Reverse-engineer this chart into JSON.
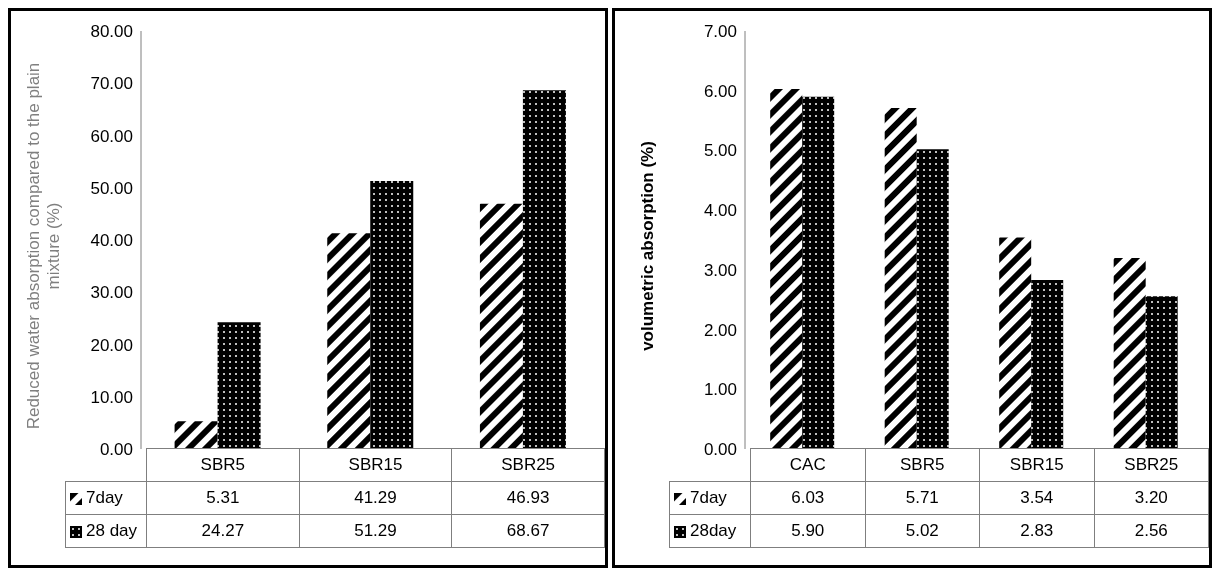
{
  "chart_data": [
    {
      "type": "bar",
      "ylabel": "Reduced water absorption compared to the plain mixture (%)",
      "categories": [
        "SBR5",
        "SBR15",
        "SBR25"
      ],
      "series": [
        {
          "name": "7day",
          "color": "#000000",
          "values": [
            5.31,
            41.29,
            46.93
          ],
          "value_labels": [
            "5.31",
            "41.29",
            "46.93"
          ]
        },
        {
          "name": "28 day",
          "color": "#000000",
          "values": [
            24.27,
            51.29,
            68.67
          ],
          "value_labels": [
            "24.27",
            "51.29",
            "68.67"
          ]
        }
      ],
      "ylim": [
        0,
        80
      ],
      "yticks": [
        {
          "value": 0,
          "label": "0.00"
        },
        {
          "value": 10,
          "label": "10.00"
        },
        {
          "value": 20,
          "label": "20.00"
        },
        {
          "value": 30,
          "label": "30.00"
        },
        {
          "value": 40,
          "label": "40.00"
        },
        {
          "value": 50,
          "label": "50.00"
        },
        {
          "value": 60,
          "label": "60.00"
        },
        {
          "value": 70,
          "label": "70.00"
        },
        {
          "value": 80,
          "label": "80.00"
        }
      ],
      "grid": false,
      "legend": "bottom"
    },
    {
      "type": "bar",
      "ylabel": "volumetric absorption (%)",
      "categories": [
        "CAC",
        "SBR5",
        "SBR15",
        "SBR25"
      ],
      "series": [
        {
          "name": "7day",
          "color": "#000000",
          "values": [
            6.03,
            5.71,
            3.54,
            3.2
          ],
          "value_labels": [
            "6.03",
            "5.71",
            "3.54",
            "3.20"
          ]
        },
        {
          "name": "28day",
          "color": "#000000",
          "values": [
            5.9,
            5.02,
            2.83,
            2.56
          ],
          "value_labels": [
            "5.90",
            "5.02",
            "2.83",
            "2.56"
          ]
        }
      ],
      "ylim": [
        0,
        7
      ],
      "yticks": [
        {
          "value": 0,
          "label": "0.00"
        },
        {
          "value": 1,
          "label": "1.00"
        },
        {
          "value": 2,
          "label": "2.00"
        },
        {
          "value": 3,
          "label": "3.00"
        },
        {
          "value": 4,
          "label": "4.00"
        },
        {
          "value": 5,
          "label": "5.00"
        },
        {
          "value": 6,
          "label": "6.00"
        },
        {
          "value": 7,
          "label": "7.00"
        }
      ],
      "grid": false,
      "legend": "bottom"
    }
  ]
}
